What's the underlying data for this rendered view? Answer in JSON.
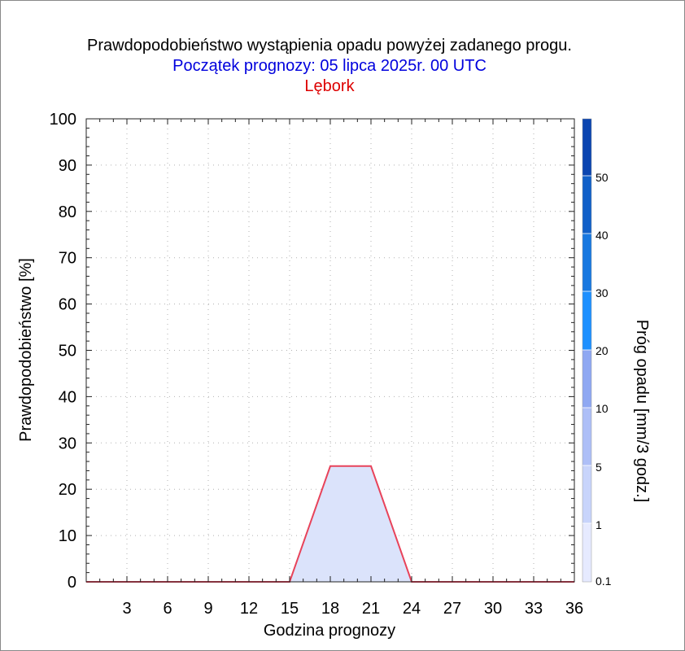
{
  "chart_data": {
    "type": "area",
    "title": "Prawdopodobieństwo wystąpienia opadu powyżej zadanego progu.",
    "subtitle": "Początek prognozy: 05 lipca 2025r. 00 UTC",
    "location": "Lębork",
    "xlabel": "Godzina prognozy",
    "ylabel": "Prawdopodobieństwo [%]",
    "colorbar_label": "Próg opadu [mm/3 godz.]",
    "xlim": [
      0,
      36
    ],
    "ylim": [
      0,
      100
    ],
    "x_ticks": [
      "3",
      "6",
      "9",
      "12",
      "15",
      "18",
      "21",
      "24",
      "27",
      "30",
      "33",
      "36"
    ],
    "y_ticks": [
      "0",
      "10",
      "20",
      "30",
      "40",
      "50",
      "60",
      "70",
      "80",
      "90",
      "100"
    ],
    "grid": true,
    "series": [
      {
        "x": [
          0,
          3,
          6,
          9,
          12,
          15,
          18,
          21,
          24,
          27,
          30,
          33,
          36
        ],
        "values": [
          0,
          0,
          0,
          0,
          0,
          0,
          25,
          25,
          0,
          0,
          0,
          0,
          0
        ]
      }
    ],
    "colorbar": {
      "labels": [
        "0.1",
        "1",
        "5",
        "10",
        "20",
        "30",
        "40",
        "50"
      ],
      "colors": [
        "#e6eaff",
        "#c8d4fb",
        "#aebff7",
        "#8fa8f2",
        "#1e90ff",
        "#1878e0",
        "#1060c8",
        "#0a45b0",
        "#0a35a0"
      ]
    },
    "colors": {
      "title": "#000000",
      "subtitle": "#0000dd",
      "location": "#dd0000",
      "series_line": "#e8435a",
      "series_fill": "#dbe3fb"
    }
  }
}
